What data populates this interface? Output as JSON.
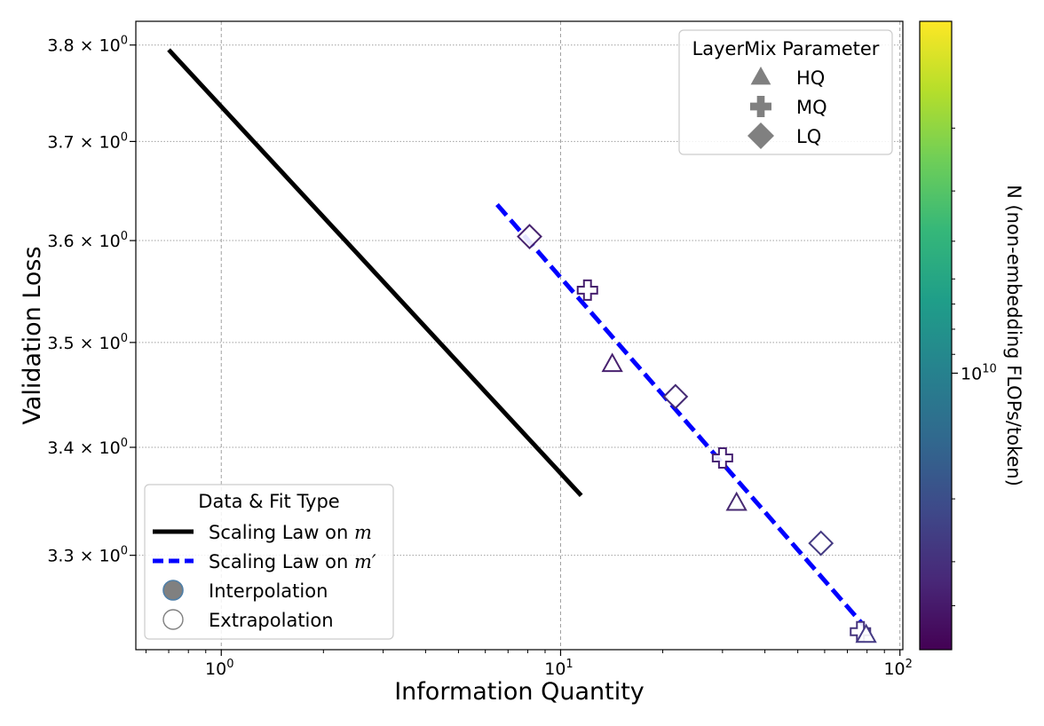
{
  "chart_data": {
    "type": "scatter",
    "title": "",
    "xlabel": "Information Quantity",
    "ylabel": "Validation Loss",
    "xscale": "log",
    "yscale": "log",
    "xlim": [
      0.56,
      102
    ],
    "ylim": [
      3.215,
      3.825
    ],
    "x_ticks": [
      {
        "value": 1,
        "label_base": "10",
        "label_exp": "0"
      },
      {
        "value": 10,
        "label_base": "10",
        "label_exp": "1"
      },
      {
        "value": 100,
        "label_base": "10",
        "label_exp": "2"
      }
    ],
    "y_ticks": [
      {
        "value": 3.3,
        "label_coef": "3.3 × 10",
        "label_exp": "0"
      },
      {
        "value": 3.4,
        "label_coef": "3.4 × 10",
        "label_exp": "0"
      },
      {
        "value": 3.5,
        "label_coef": "3.5 × 10",
        "label_exp": "0"
      },
      {
        "value": 3.6,
        "label_coef": "3.6 × 10",
        "label_exp": "0"
      },
      {
        "value": 3.7,
        "label_coef": "3.7 × 10",
        "label_exp": "0"
      },
      {
        "value": 3.8,
        "label_coef": "3.8 × 10",
        "label_exp": "0"
      }
    ],
    "grid": true,
    "lines": [
      {
        "name": "Scaling Law on m",
        "style": "solid",
        "color": "#000000",
        "x": [
          0.7,
          11.5
        ],
        "y": [
          3.795,
          3.355
        ]
      },
      {
        "name": "Scaling Law on m′",
        "style": "dashed",
        "color": "#0000ff",
        "x": [
          6.5,
          78
        ],
        "y": [
          3.636,
          3.237
        ]
      }
    ],
    "points": [
      {
        "marker": "LQ",
        "x": 8.1,
        "y": 3.604,
        "color": "#46226e"
      },
      {
        "marker": "MQ",
        "x": 12.0,
        "y": 3.551,
        "color": "#461f6e"
      },
      {
        "marker": "HQ",
        "x": 14.2,
        "y": 3.479,
        "color": "#48216f"
      },
      {
        "marker": "LQ",
        "x": 21.8,
        "y": 3.448,
        "color": "#442a73"
      },
      {
        "marker": "MQ",
        "x": 30.0,
        "y": 3.39,
        "color": "#472173"
      },
      {
        "marker": "HQ",
        "x": 33.0,
        "y": 3.348,
        "color": "#472a72"
      },
      {
        "marker": "LQ",
        "x": 58.5,
        "y": 3.311,
        "color": "#443a82"
      },
      {
        "marker": "MQ",
        "x": 76.5,
        "y": 3.231,
        "color": "#45337d"
      },
      {
        "marker": "HQ",
        "x": 79.5,
        "y": 3.228,
        "color": "#453a84"
      }
    ],
    "legend_markers": {
      "title": "LayerMix Parameter",
      "placement": "top-right",
      "entries": [
        {
          "marker": "HQ",
          "label": "HQ"
        },
        {
          "marker": "MQ",
          "label": "MQ"
        },
        {
          "marker": "LQ",
          "label": "LQ"
        }
      ]
    },
    "legend_fit": {
      "title": "Data & Fit Type",
      "placement": "bottom-left",
      "entries": [
        {
          "kind": "solid",
          "label": "Scaling Law on ",
          "math": "m"
        },
        {
          "kind": "dashed",
          "label": "Scaling Law on ",
          "math": "m′"
        },
        {
          "kind": "filled-circle",
          "label": "Interpolation"
        },
        {
          "kind": "open-circle",
          "label": "Extrapolation"
        }
      ]
    },
    "colorbar": {
      "label": "N (non-embedding FLOPs/token)",
      "scale": "log",
      "colormap": "viridis",
      "colors": [
        "#440154",
        "#482878",
        "#3e4989",
        "#31688e",
        "#26828e",
        "#1f9e89",
        "#35b779",
        "#6ece58",
        "#b5de2b",
        "#fde725"
      ],
      "tick": {
        "position": 0.56,
        "label_base": "10",
        "label_exp": "10"
      }
    }
  }
}
